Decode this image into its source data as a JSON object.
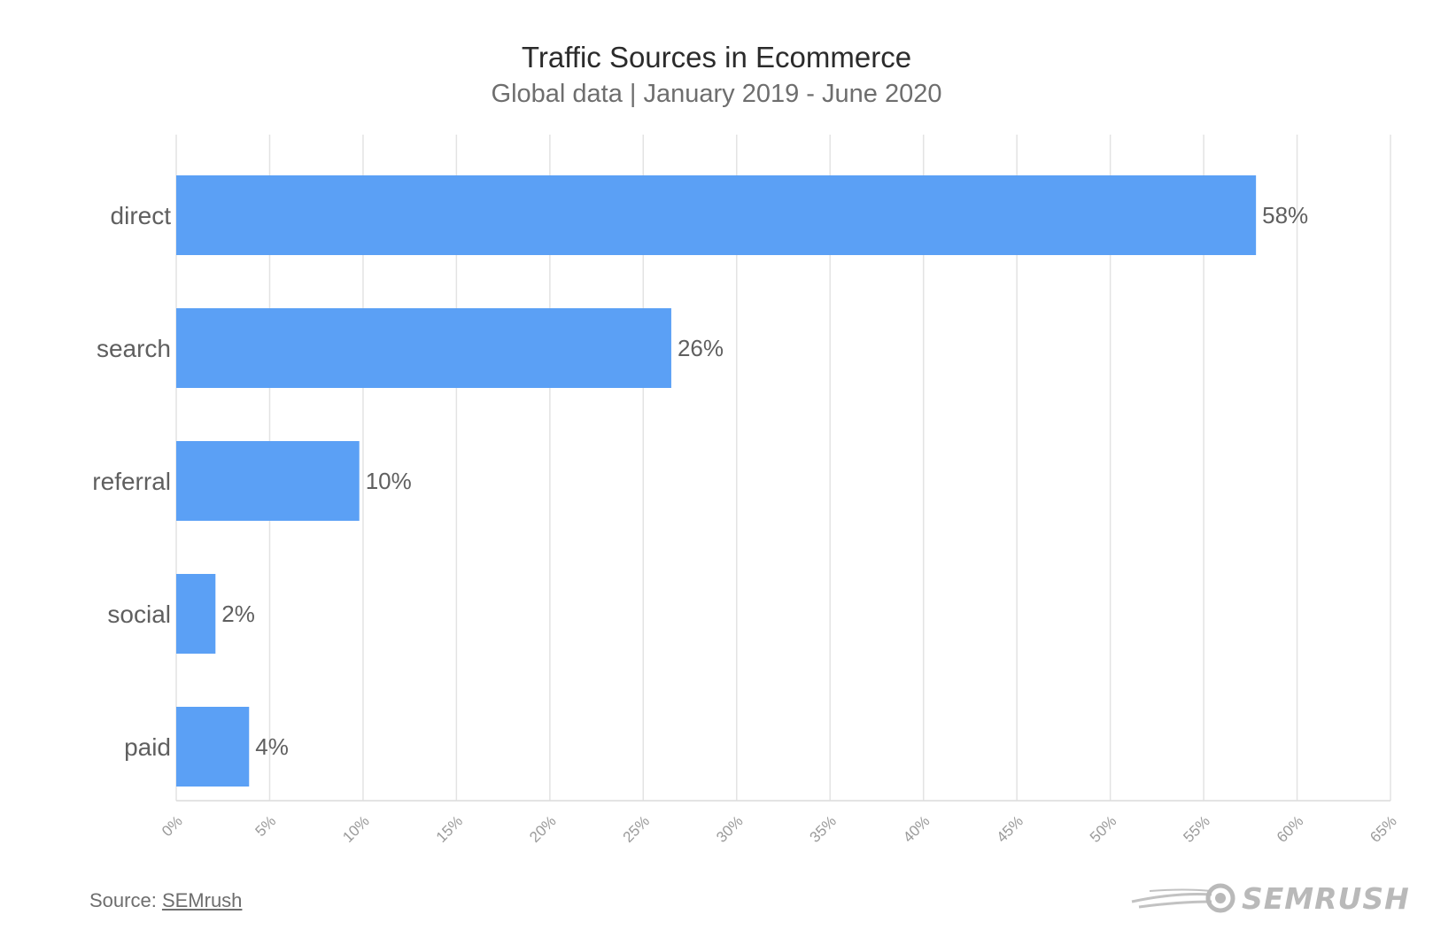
{
  "chart_data": {
    "type": "bar",
    "orientation": "horizontal",
    "title": "Traffic Sources in Ecommerce",
    "subtitle": "Global data | January 2019 - June 2020",
    "categories": [
      "direct",
      "search",
      "referral",
      "social",
      "paid"
    ],
    "values": [
      57.8,
      26.5,
      9.8,
      2.1,
      3.9
    ],
    "value_labels": [
      "58%",
      "26%",
      "10%",
      "2%",
      "4%"
    ],
    "xlim": [
      0,
      65
    ],
    "x_ticks": [
      0,
      5,
      10,
      15,
      20,
      25,
      30,
      35,
      40,
      45,
      50,
      55,
      60,
      65
    ],
    "x_tick_labels": [
      "0%",
      "5%",
      "10%",
      "15%",
      "20%",
      "25%",
      "30%",
      "35%",
      "40%",
      "45%",
      "50%",
      "55%",
      "60%",
      "65%"
    ],
    "xlabel": "",
    "ylabel": "",
    "grid": true,
    "bar_color": "#5ba0f5"
  },
  "footer": {
    "source_prefix": "Source: ",
    "source_link": "SEMrush",
    "logo_text": "SEMRUSH",
    "logo_icon": "semrush-comet-icon"
  }
}
